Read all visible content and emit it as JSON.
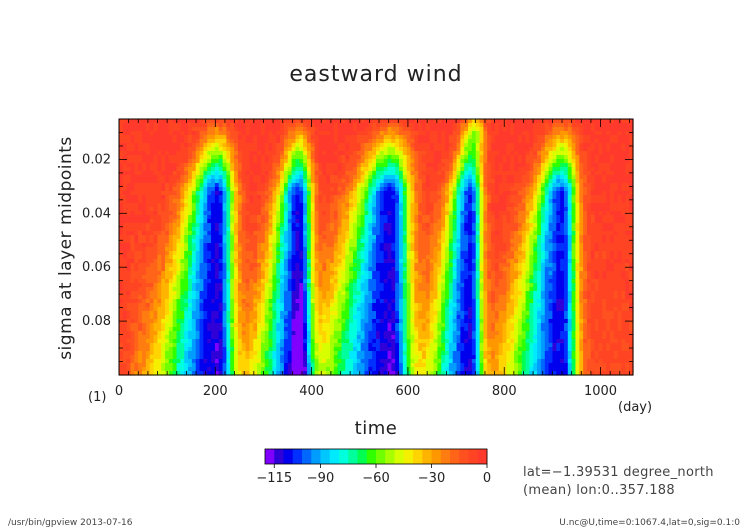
{
  "chart_data": {
    "type": "heatmap",
    "title": "eastward wind",
    "xlabel": "time",
    "ylabel": "sigma at layer midpoints",
    "x_unit": "(day)",
    "y_unit": "(1)",
    "xlim": [
      0,
      1067.4
    ],
    "ylim": [
      0.1,
      0.005
    ],
    "x_ticks": [
      0,
      200,
      400,
      600,
      800,
      1000
    ],
    "x_tick_labels": [
      "0",
      "200",
      "400",
      "600",
      "800",
      "1000"
    ],
    "y_ticks": [
      0.02,
      0.04,
      0.06,
      0.08
    ],
    "y_tick_labels": [
      "0.02",
      "0.04",
      "0.06",
      "0.08"
    ],
    "colorbar": {
      "levels": [
        -120,
        -115,
        -110,
        -105,
        -100,
        -95,
        -90,
        -85,
        -80,
        -75,
        -70,
        -65,
        -60,
        -55,
        -50,
        -45,
        -40,
        -35,
        -30,
        -25,
        -20,
        -15,
        -10,
        -5,
        0
      ],
      "tick_values": [
        -115,
        -90,
        -60,
        -30,
        0
      ],
      "tick_labels": [
        "−115",
        "−90",
        "−60",
        "−30",
        "0"
      ]
    },
    "cycles": [
      {
        "t_start": 145,
        "t_min": 205,
        "t_end": 280,
        "min_value": -113
      },
      {
        "t_start": 330,
        "t_min": 375,
        "t_end": 430,
        "min_value": -113
      },
      {
        "t_start": 480,
        "t_min": 565,
        "t_end": 640,
        "min_value": -113
      },
      {
        "t_start": 680,
        "t_min": 730,
        "t_end": 775,
        "min_value": -110
      },
      {
        "t_start": 860,
        "t_min": 920,
        "t_end": 985,
        "min_value": -110
      }
    ],
    "grid": false
  },
  "annotations": {
    "info_lat": "lat=−1.39531 degree_north",
    "info_mean": "(mean) lon:0..357.188"
  },
  "footer": {
    "left": "/usr/bin/gpview  2013-07-16",
    "right": "U.nc@U,time=0:1067.4,lat=0,sig=0.1:0"
  },
  "colors": {
    "palette": [
      "#7f00ff",
      "#3000d8",
      "#0000ee",
      "#0030ff",
      "#0068ff",
      "#009cff",
      "#00c8ff",
      "#00eaff",
      "#00ffdc",
      "#00ff9c",
      "#00ff50",
      "#30ff00",
      "#70ff00",
      "#a8ff00",
      "#d8ff00",
      "#f4f000",
      "#ffd400",
      "#ffb400",
      "#ff9800",
      "#ff7c10",
      "#ff6418",
      "#ff5020",
      "#ff4424",
      "#ff3a2c"
    ]
  }
}
